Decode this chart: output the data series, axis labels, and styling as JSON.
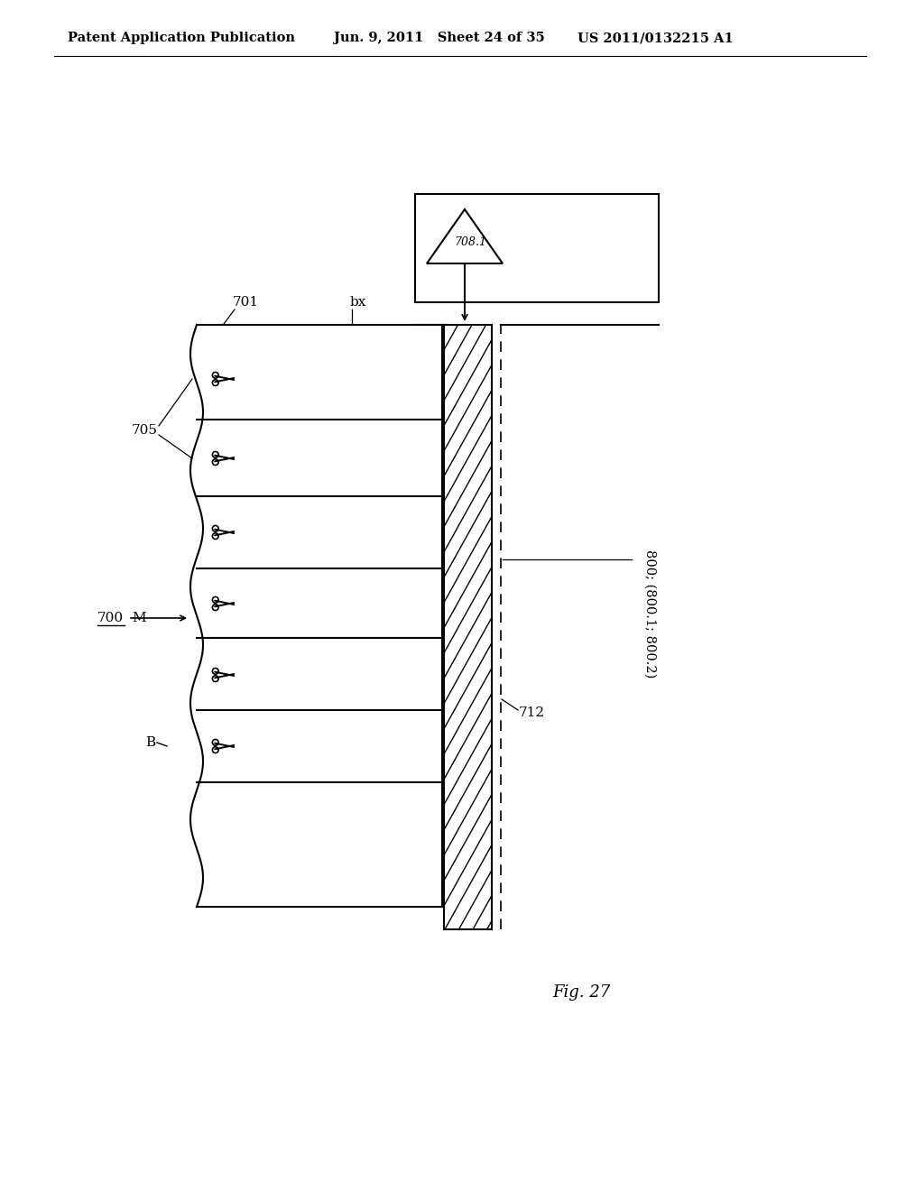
{
  "bg_color": "#ffffff",
  "header_left": "Patent Application Publication",
  "header_mid": "Jun. 9, 2011   Sheet 24 of 35",
  "header_right": "US 2011/0132215 A1",
  "fig_label": "Fig. 27",
  "label_700": "700",
  "label_701": "701",
  "label_705": "705",
  "label_M": "M",
  "label_B": "B",
  "label_bx": "bx",
  "label_708_1": "708.1",
  "label_712": "712",
  "label_800": "800; (800.1; 800.2)",
  "line_color": "#000000"
}
